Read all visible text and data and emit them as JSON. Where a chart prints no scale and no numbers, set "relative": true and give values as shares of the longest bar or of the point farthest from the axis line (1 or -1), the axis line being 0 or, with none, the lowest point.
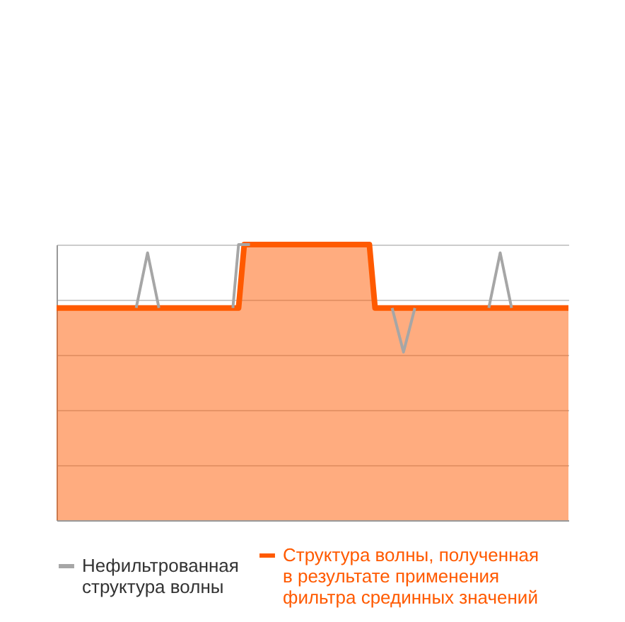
{
  "chart_data": {
    "type": "area",
    "relative": true,
    "grid": "y",
    "legend": "bottom",
    "categories": [
      null,
      null,
      null,
      null,
      null,
      null,
      null,
      null,
      null,
      null,
      null,
      null,
      null,
      null,
      null,
      null,
      null,
      null,
      null,
      null,
      null,
      null,
      null,
      null,
      null,
      null,
      null,
      null,
      null,
      null,
      null,
      null,
      null,
      null,
      null,
      null,
      null,
      null,
      null,
      null,
      null,
      null,
      null,
      null,
      null,
      null,
      null,
      null,
      null,
      null,
      null,
      null,
      null,
      null,
      null,
      null,
      null,
      null,
      null,
      null,
      null,
      null,
      null,
      null,
      null,
      null,
      null,
      null,
      null,
      null,
      null,
      null,
      null,
      null,
      null,
      null,
      null,
      null,
      null,
      null,
      null,
      null,
      null,
      null,
      null,
      null,
      null,
      null,
      null,
      null,
      null
    ],
    "series": [
      {
        "name": "Нефильтрованная структура волны",
        "type": "line",
        "color": "#a6a6a6",
        "values": [
          null,
          null,
          null,
          null,
          null,
          null,
          null,
          null,
          null,
          null,
          null,
          null,
          null,
          null,
          0.77,
          0.87,
          0.97,
          0.87,
          0.77,
          null,
          null,
          null,
          null,
          null,
          null,
          null,
          null,
          null,
          null,
          null,
          null,
          0.77,
          1,
          1,
          1,
          null,
          null,
          null,
          null,
          null,
          null,
          null,
          null,
          null,
          null,
          null,
          null,
          null,
          null,
          null,
          null,
          null,
          null,
          null,
          null,
          null,
          null,
          null,
          null,
          0.77,
          0.69,
          0.61,
          0.69,
          0.77,
          null,
          null,
          null,
          null,
          null,
          null,
          null,
          null,
          null,
          null,
          null,
          null,
          0.77,
          0.87,
          0.97,
          0.87,
          0.77,
          null,
          null,
          null,
          null,
          null,
          null,
          null,
          null,
          null,
          null
        ]
      },
      {
        "name": "Структура волны, полученная в результате применения фильтра срединных значений",
        "color": "#ff5a00",
        "values": [
          0.77,
          0.77,
          0.77,
          0.77,
          0.77,
          0.77,
          0.77,
          0.77,
          0.77,
          0.77,
          0.77,
          0.77,
          0.77,
          0.77,
          0.77,
          0.77,
          0.77,
          0.77,
          0.77,
          0.77,
          0.77,
          0.77,
          0.77,
          0.77,
          0.77,
          0.77,
          0.77,
          0.77,
          0.77,
          0.77,
          0.77,
          0.77,
          0.77,
          1,
          1,
          1,
          1,
          1,
          1,
          1,
          1,
          1,
          1,
          1,
          1,
          1,
          1,
          1,
          1,
          1,
          1,
          1,
          1,
          1,
          1,
          1,
          0.77,
          0.77,
          0.77,
          0.77,
          0.77,
          0.77,
          0.77,
          0.77,
          0.77,
          0.77,
          0.77,
          0.77,
          0.77,
          0.77,
          0.77,
          0.77,
          0.77,
          0.77,
          0.77,
          0.77,
          0.77,
          0.77,
          0.77,
          0.77,
          0.77,
          0.77,
          0.77,
          0.77,
          0.77,
          0.77,
          0.77,
          0.77,
          0.77,
          0.77,
          0.77
        ]
      }
    ]
  }
}
